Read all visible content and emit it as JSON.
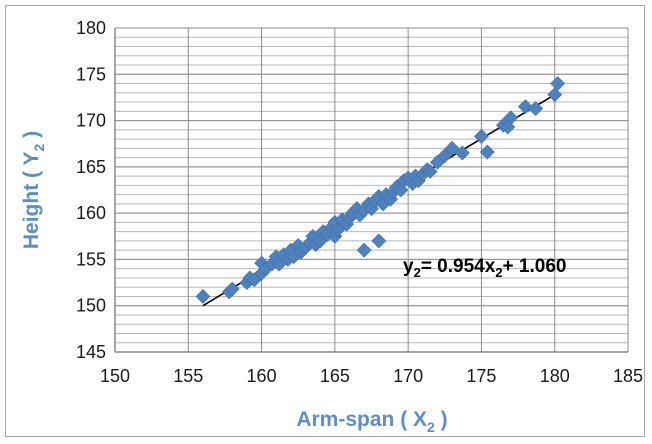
{
  "chart_data": {
    "type": "scatter",
    "title": "",
    "xlabel": "Arm-span ( X",
    "xlabel_sub": "2",
    "xlabel_end": " )",
    "ylabel": "Height ( Y",
    "ylabel_sub": "2",
    "ylabel_end": " )",
    "xlim": [
      150,
      185
    ],
    "ylim": [
      145,
      180
    ],
    "x_ticks": [
      150,
      155,
      160,
      165,
      170,
      175,
      180,
      185
    ],
    "y_ticks": [
      145,
      150,
      155,
      160,
      165,
      170,
      175,
      180
    ],
    "grid": {
      "horizontal": true,
      "vertical": true,
      "y_minor_step": 1
    },
    "marker_color": "#4f81bd",
    "trendline": {
      "x_range": [
        156,
        180
      ],
      "y_range": [
        150,
        172.8
      ],
      "color": "#000000"
    },
    "equation": {
      "lhs": "y",
      "lhs_sub": "2",
      "mid": "= 0.954x",
      "mid_sub": "2",
      "rhs": "+ 1.060"
    },
    "points": [
      [
        156,
        151
      ],
      [
        157.8,
        151.5
      ],
      [
        158,
        151.8
      ],
      [
        159,
        152.5
      ],
      [
        159.2,
        153
      ],
      [
        159.5,
        152.8
      ],
      [
        160,
        153.5
      ],
      [
        160,
        154.6
      ],
      [
        160.3,
        154
      ],
      [
        160.7,
        154.5
      ],
      [
        161,
        155.3
      ],
      [
        161.2,
        154.5
      ],
      [
        161.5,
        155.5
      ],
      [
        161.8,
        155
      ],
      [
        162,
        156
      ],
      [
        162.2,
        155.3
      ],
      [
        162.5,
        156.5
      ],
      [
        162.7,
        155.8
      ],
      [
        163,
        156.3
      ],
      [
        163.3,
        156.8
      ],
      [
        163.5,
        157.5
      ],
      [
        163.7,
        156.6
      ],
      [
        164,
        157
      ],
      [
        164.2,
        158
      ],
      [
        164.5,
        157.7
      ],
      [
        164.8,
        158.5
      ],
      [
        165,
        157.5
      ],
      [
        165,
        159
      ],
      [
        165.2,
        158.2
      ],
      [
        165.5,
        159.3
      ],
      [
        165.8,
        158.8
      ],
      [
        166,
        159.5
      ],
      [
        166.2,
        160
      ],
      [
        166.5,
        160.5
      ],
      [
        166.7,
        159.8
      ],
      [
        167,
        160.3
      ],
      [
        167,
        156
      ],
      [
        167.3,
        161
      ],
      [
        167.5,
        160.5
      ],
      [
        167.7,
        161.3
      ],
      [
        168,
        157
      ],
      [
        168,
        161.8
      ],
      [
        168.3,
        161
      ],
      [
        168.5,
        162
      ],
      [
        168.8,
        161.5
      ],
      [
        169,
        162.3
      ],
      [
        169.2,
        162.8
      ],
      [
        169.5,
        162.5
      ],
      [
        169.7,
        163.5
      ],
      [
        170,
        163.8
      ],
      [
        170.3,
        163.2
      ],
      [
        170.5,
        164
      ],
      [
        170.7,
        163.5
      ],
      [
        171,
        164.2
      ],
      [
        171.3,
        164.7
      ],
      [
        171.5,
        164.5
      ],
      [
        172,
        165.5
      ],
      [
        172.5,
        166.2
      ],
      [
        173,
        167
      ],
      [
        173.7,
        166.5
      ],
      [
        175,
        168.3
      ],
      [
        175.4,
        166.6
      ],
      [
        176.5,
        169.5
      ],
      [
        177,
        170.3
      ],
      [
        176.8,
        169.3
      ],
      [
        178,
        171.5
      ],
      [
        178.7,
        171.3
      ],
      [
        180,
        172.8
      ],
      [
        180.2,
        174
      ]
    ]
  }
}
